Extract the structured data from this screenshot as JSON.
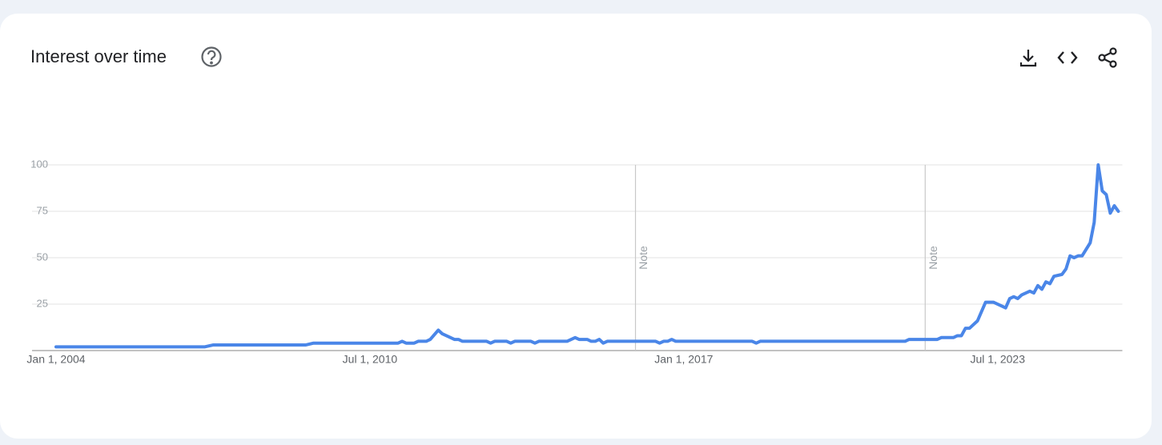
{
  "chart_data": {
    "type": "line",
    "title": "Interest over time",
    "x": [
      "2004-01",
      "2007-02",
      "2007-04",
      "2009-03",
      "2009-05",
      "2011-02",
      "2011-03",
      "2011-04",
      "2011-06",
      "2011-07",
      "2011-09",
      "2011-10",
      "2011-12",
      "2012-01",
      "2012-04",
      "2012-05",
      "2012-06",
      "2012-12",
      "2013-01",
      "2013-02",
      "2013-05",
      "2013-06",
      "2013-07",
      "2013-11",
      "2013-12",
      "2014-01",
      "2014-08",
      "2014-10",
      "2014-11",
      "2015-01",
      "2015-02",
      "2015-03",
      "2015-04",
      "2015-05",
      "2015-06",
      "2016-06",
      "2016-07",
      "2016-08",
      "2016-09",
      "2016-10",
      "2016-11",
      "2018-06",
      "2018-07",
      "2018-08",
      "2021-08",
      "2021-09",
      "2022-04",
      "2022-05",
      "2022-08",
      "2022-09",
      "2022-10",
      "2022-11",
      "2022-12",
      "2023-02",
      "2023-04",
      "2023-06",
      "2023-09",
      "2023-10",
      "2023-11",
      "2023-12",
      "2024-01",
      "2024-03",
      "2024-04",
      "2024-05",
      "2024-06",
      "2024-07",
      "2024-08",
      "2024-09",
      "2024-11",
      "2024-12",
      "2025-01",
      "2025-02",
      "2025-03",
      "2025-04",
      "2025-06",
      "2025-07",
      "2025-08",
      "2025-09",
      "2025-10",
      "2025-11",
      "2025-12",
      "2026-01"
    ],
    "values": [
      2,
      2,
      3,
      3,
      4,
      4,
      5,
      4,
      4,
      5,
      5,
      6,
      11,
      9,
      6,
      6,
      5,
      5,
      4,
      5,
      5,
      4,
      5,
      5,
      4,
      5,
      5,
      7,
      6,
      6,
      5,
      5,
      6,
      4,
      5,
      5,
      4,
      5,
      5,
      6,
      5,
      5,
      4,
      5,
      5,
      6,
      6,
      7,
      7,
      8,
      8,
      12,
      12,
      16,
      26,
      26,
      23,
      28,
      29,
      28,
      30,
      32,
      31,
      35,
      33,
      37,
      36,
      40,
      41,
      44,
      51,
      50,
      51,
      51,
      58,
      69,
      100,
      86,
      84,
      74,
      78,
      75
    ],
    "color": "#4a86e8",
    "xlim": [
      "2004-01",
      "2026-02"
    ],
    "xticks": [
      {
        "value": "2004-01-01",
        "label": "Jan 1, 2004"
      },
      {
        "value": "2010-07-01",
        "label": "Jul 1, 2010"
      },
      {
        "value": "2017-01-01",
        "label": "Jan 1, 2017"
      },
      {
        "value": "2023-07-01",
        "label": "Jul 1, 2023"
      }
    ],
    "ylim": [
      0,
      100
    ],
    "yticks": [
      25,
      50,
      75,
      100
    ],
    "grid": true,
    "annotations": [
      {
        "x": "2016-01-01",
        "text": "Note"
      },
      {
        "x": "2022-01-01",
        "text": "Note"
      }
    ]
  }
}
